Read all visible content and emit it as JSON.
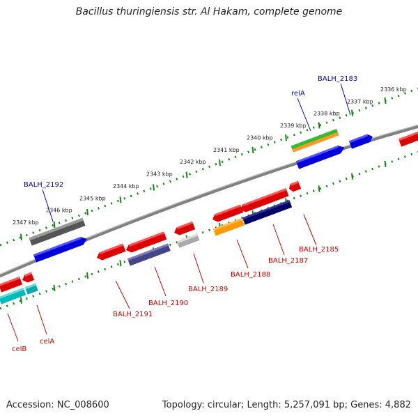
{
  "title": "Bacillus thuringiensis str. Al Hakam, complete genome",
  "footer": {
    "accession": "Accession: NC_008600",
    "topology": "Topology: circular; Length: 5,257,091 bp; Genes: 4,882"
  },
  "colors": {
    "backbone": "#777777",
    "forward_axis": "#118811",
    "reverse_axis": "#118811",
    "forward_label": "#0000cc",
    "reverse_label": "#cc0000"
  },
  "axis_ticks": [
    "2336 kbp",
    "2337 kbp",
    "2338 kbp",
    "2339 kbp",
    "2340 kbp",
    "2341 kbp",
    "2342 kbp",
    "2343 kbp",
    "2344 kbp",
    "2345 kbp",
    "2346 kbp",
    "2347 kbp"
  ],
  "forward_labels": [
    {
      "id": "balh_2183",
      "text": "BALH_2183"
    },
    {
      "id": "rela",
      "text": "relA"
    },
    {
      "id": "balh_2192",
      "text": "BALH_2192"
    }
  ],
  "reverse_labels": [
    {
      "id": "balh_2185",
      "text": "BALH_2185"
    },
    {
      "id": "balh_2187",
      "text": "BALH_2187"
    },
    {
      "id": "balh_2188",
      "text": "BALH_2188"
    },
    {
      "id": "balh_2189",
      "text": "BALH_2189"
    },
    {
      "id": "balh_2190",
      "text": "BALH_2190"
    },
    {
      "id": "balh_2191",
      "text": "BALH_2191"
    },
    {
      "id": "celb",
      "text": "celB"
    },
    {
      "id": "cela",
      "text": "celA"
    }
  ]
}
